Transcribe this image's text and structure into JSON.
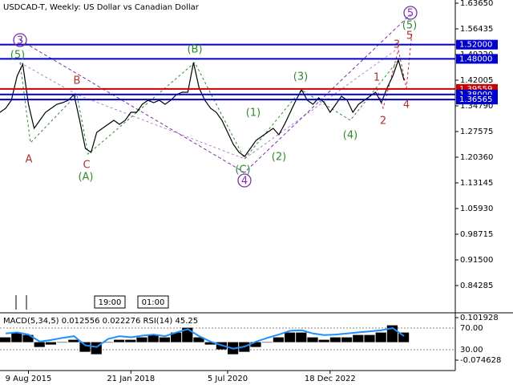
{
  "chart_data": {
    "type": "line",
    "title": "USDCAD-T, Weekly:  US Dollar vs Canadian Dollar",
    "color": "#000000",
    "categories": [
      null,
      null,
      null,
      null,
      null,
      "9 Aug 2015",
      null,
      null,
      null,
      null,
      null,
      null,
      null,
      null,
      null,
      null,
      null,
      null,
      null,
      null,
      null,
      null,
      null,
      "21 Jan 2018",
      null,
      null,
      null,
      null,
      null,
      null,
      null,
      null,
      null,
      null,
      null,
      null,
      null,
      null,
      null,
      null,
      "5 Jul 2020",
      null,
      null,
      null,
      null,
      null,
      null,
      null,
      null,
      null,
      null,
      null,
      null,
      null,
      null,
      null,
      null,
      null,
      "18 Dec 2022",
      null,
      null,
      null,
      null,
      null,
      null,
      null,
      null,
      null,
      null,
      null,
      null,
      null
    ],
    "values": [
      1.3299,
      1.3411,
      1.3637,
      1.4313,
      1.4651,
      1.3524,
      1.2848,
      1.3073,
      1.3299,
      1.3411,
      1.3524,
      1.3569,
      1.3637,
      1.3795,
      1.3073,
      1.2284,
      1.2171,
      1.2735,
      1.2848,
      1.296,
      1.3073,
      1.296,
      1.3073,
      1.3299,
      1.3299,
      1.3524,
      1.3637,
      1.3569,
      1.3637,
      1.3524,
      1.3637,
      1.3795,
      1.3862,
      1.3862,
      1.4696,
      1.3975,
      1.3637,
      1.3411,
      1.3299,
      1.3073,
      1.2735,
      1.2397,
      1.2171,
      1.2059,
      1.2284,
      1.2509,
      1.2622,
      1.2735,
      1.2848,
      1.2667,
      1.296,
      1.3299,
      1.3637,
      1.393,
      1.3637,
      1.3524,
      1.3704,
      1.3569,
      1.3299,
      1.3524,
      1.375,
      1.3637,
      1.3299,
      1.3524,
      1.3637,
      1.375,
      1.3862,
      1.3569,
      1.3975,
      1.4313,
      1.4764,
      1.42
    ],
    "ylim": [
      0.7707,
      1.6455
    ],
    "yticks": [
      {
        "value": 1.6365,
        "label": "1.63650"
      },
      {
        "value": 1.56435,
        "label": "1.56435"
      },
      {
        "value": 1.4922,
        "label": "1.49220"
      },
      {
        "value": 1.42005,
        "label": "1.42005"
      },
      {
        "value": 1.3479,
        "label": "1.34790"
      },
      {
        "value": 1.27575,
        "label": "1.27575"
      },
      {
        "value": 1.2036,
        "label": "1.20360"
      },
      {
        "value": 1.13145,
        "label": "1.13145"
      },
      {
        "value": 1.0593,
        "label": "1.05930"
      },
      {
        "value": 0.98715,
        "label": "0.98715"
      },
      {
        "value": 0.915,
        "label": "0.91500"
      },
      {
        "value": 0.84285,
        "label": "0.84285"
      }
    ],
    "levels": [
      {
        "value": 1.52,
        "label": "1.52000",
        "color": "#0000cc"
      },
      {
        "value": 1.48,
        "label": "1.48000",
        "color": "#0000cc"
      },
      {
        "value": 1.39559,
        "label": "1.39559",
        "color": "#cc0000"
      },
      {
        "value": 1.38,
        "label": "1.38000",
        "color": "#0000cc"
      },
      {
        "value": 1.36565,
        "label": "1.36565",
        "color": "#0000cc"
      }
    ],
    "annotations": [
      {
        "text": "3",
        "color": "#7b2fa8",
        "circled": true
      },
      {
        "text": "(5)",
        "color": "#2e8b2e"
      },
      {
        "text": "A",
        "color": "#b03030"
      },
      {
        "text": "B",
        "color": "#b03030"
      },
      {
        "text": "C",
        "color": "#b03030"
      },
      {
        "text": "(A)",
        "color": "#2e8b2e"
      },
      {
        "text": "(B)",
        "color": "#2e8b2e"
      },
      {
        "text": "(C)",
        "color": "#2e8b2e"
      },
      {
        "text": "4",
        "color": "#7b2fa8",
        "circled": true
      },
      {
        "text": "(1)",
        "color": "#2e8b2e"
      },
      {
        "text": "(2)",
        "color": "#2e8b2e"
      },
      {
        "text": "(3)",
        "color": "#2e8b2e"
      },
      {
        "text": "(4)",
        "color": "#2e8b2e"
      },
      {
        "text": "1",
        "color": "#b03030"
      },
      {
        "text": "2",
        "color": "#b03030"
      },
      {
        "text": "3",
        "color": "#b03030"
      },
      {
        "text": "4",
        "color": "#b03030"
      },
      {
        "text": "5",
        "color": "#b03030"
      },
      {
        "text": "(5)",
        "color": "#2e8b2e"
      },
      {
        "text": "5",
        "color": "#7b2fa8",
        "circled": true
      }
    ],
    "time_markers": [
      "19:00",
      "01:00"
    ],
    "indicator": {
      "label": "MACD(5,34,5) 0.012556 0.022276 RSI(14) 45.25",
      "macd": {
        "color": "#000000",
        "values": [
          0.02,
          0.04,
          0.03,
          -0.02,
          -0.01,
          0.0,
          0.01,
          -0.04,
          -0.05,
          0.0,
          0.01,
          0.01,
          0.02,
          0.03,
          0.02,
          0.04,
          0.06,
          0.02,
          -0.01,
          -0.03,
          -0.05,
          -0.04,
          -0.02,
          0.0,
          0.02,
          0.04,
          0.04,
          0.02,
          0.01,
          0.02,
          0.02,
          0.03,
          0.03,
          0.04,
          0.07,
          0.04
        ],
        "ylim": [
          -0.1179,
          0.1153
        ],
        "yticks": [
          0.101928,
          -0.074628
        ]
      },
      "rsi": {
        "color": "#1e90ff",
        "values": [
          60,
          62,
          58,
          45,
          48,
          52,
          55,
          38,
          35,
          50,
          55,
          53,
          56,
          58,
          55,
          62,
          68,
          55,
          45,
          38,
          32,
          36,
          45,
          52,
          58,
          65,
          66,
          60,
          57,
          58,
          60,
          62,
          64,
          66,
          70,
          55
        ],
        "ylim": [
          -8.5,
          95.2
        ],
        "yticks": [
          {
            "value": 70,
            "label": "70.00"
          },
          {
            "value": 30,
            "label": "30.00"
          }
        ]
      }
    }
  }
}
